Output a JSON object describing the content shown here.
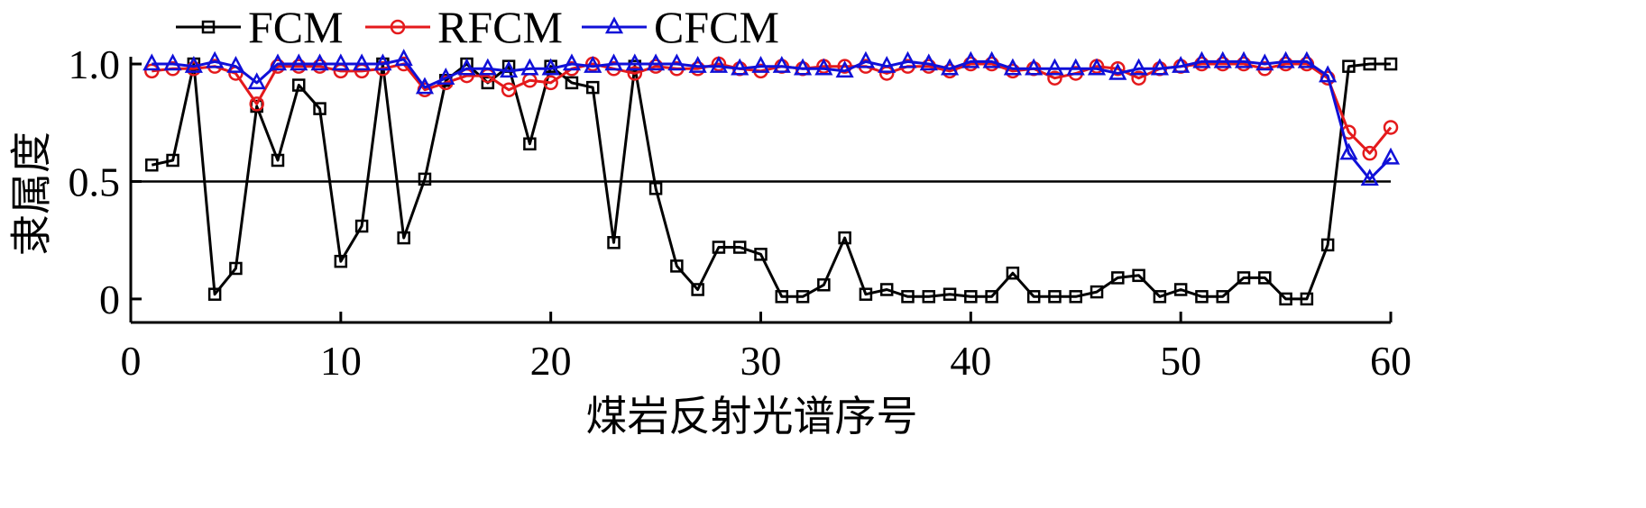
{
  "chart_data": {
    "type": "line",
    "xlabel": "煤岩反射光谱序号",
    "ylabel": "隶属度",
    "xlim": [
      0,
      60
    ],
    "ylim": [
      -0.1,
      1.05
    ],
    "xticks": [
      0,
      10,
      20,
      30,
      40,
      50,
      60
    ],
    "yticks": [
      0,
      0.5,
      1.0
    ],
    "ytick_labels": [
      "0",
      "0.5",
      "1.0"
    ],
    "reference_line": 0.5,
    "legend_position": "top-left",
    "x": [
      1,
      2,
      3,
      4,
      5,
      6,
      7,
      8,
      9,
      10,
      11,
      12,
      13,
      14,
      15,
      16,
      17,
      18,
      19,
      20,
      21,
      22,
      23,
      24,
      25,
      26,
      27,
      28,
      29,
      30,
      31,
      32,
      33,
      34,
      35,
      36,
      37,
      38,
      39,
      40,
      41,
      42,
      43,
      44,
      45,
      46,
      47,
      48,
      49,
      50,
      51,
      52,
      53,
      54,
      55,
      56,
      57,
      58,
      59,
      60
    ],
    "series": [
      {
        "name": "FCM",
        "color": "#000000",
        "marker": "square",
        "values": [
          0.57,
          0.59,
          1.0,
          0.02,
          0.13,
          0.82,
          0.59,
          0.91,
          0.81,
          0.16,
          0.31,
          1.0,
          0.26,
          0.51,
          0.93,
          1.0,
          0.92,
          0.99,
          0.66,
          0.99,
          0.92,
          0.9,
          0.24,
          0.99,
          0.47,
          0.14,
          0.04,
          0.22,
          0.22,
          0.19,
          0.01,
          0.01,
          0.06,
          0.26,
          0.02,
          0.04,
          0.01,
          0.01,
          0.02,
          0.01,
          0.01,
          0.11,
          0.01,
          0.01,
          0.01,
          0.03,
          0.09,
          0.1,
          0.01,
          0.04,
          0.01,
          0.01,
          0.09,
          0.09,
          0.0,
          0.0,
          0.23,
          0.99,
          1.0,
          1.0
        ]
      },
      {
        "name": "RFCM",
        "color": "#e41a1c",
        "marker": "circle",
        "values": [
          0.97,
          0.98,
          0.98,
          0.99,
          0.96,
          0.83,
          0.99,
          0.99,
          0.99,
          0.97,
          0.97,
          0.98,
          1.0,
          0.89,
          0.92,
          0.95,
          0.95,
          0.89,
          0.93,
          0.92,
          0.98,
          1.0,
          0.98,
          0.96,
          0.99,
          0.98,
          0.98,
          1.0,
          0.98,
          0.97,
          0.99,
          0.98,
          0.99,
          0.99,
          0.99,
          0.96,
          0.99,
          0.99,
          0.97,
          1.0,
          1.0,
          0.97,
          0.98,
          0.94,
          0.96,
          0.99,
          0.98,
          0.94,
          0.98,
          0.99,
          1.0,
          1.0,
          1.0,
          0.98,
          1.0,
          1.0,
          0.94,
          0.71,
          0.62,
          0.73
        ]
      },
      {
        "name": "CFCM",
        "color": "#1010d8",
        "marker": "triangle",
        "values": [
          1.0,
          1.0,
          0.99,
          1.01,
          0.99,
          0.92,
          1.0,
          1.0,
          1.0,
          1.0,
          1.0,
          1.0,
          1.02,
          0.9,
          0.94,
          0.98,
          0.98,
          0.97,
          0.98,
          0.98,
          1.0,
          0.99,
          1.0,
          1.0,
          1.0,
          1.0,
          0.99,
          0.99,
          0.98,
          0.99,
          0.99,
          0.98,
          0.98,
          0.97,
          1.01,
          0.99,
          1.01,
          1.0,
          0.98,
          1.01,
          1.01,
          0.98,
          0.98,
          0.98,
          0.98,
          0.98,
          0.96,
          0.98,
          0.98,
          0.99,
          1.01,
          1.01,
          1.01,
          1.0,
          1.01,
          1.01,
          0.95,
          0.62,
          0.51,
          0.6
        ]
      }
    ]
  }
}
